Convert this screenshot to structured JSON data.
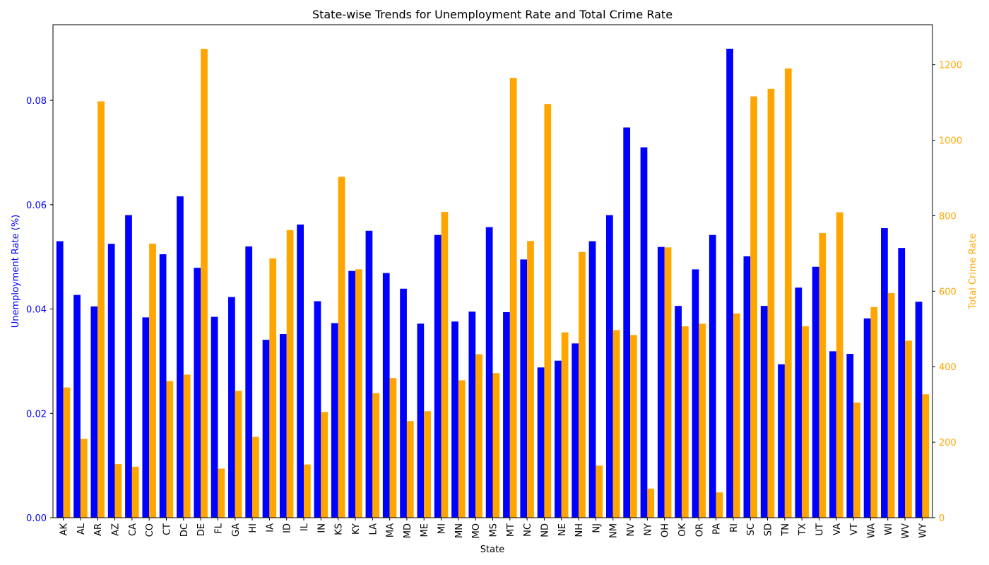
{
  "chart_data": {
    "type": "bar",
    "title": "State-wise Trends for Unemployment Rate and Total Crime Rate",
    "xlabel": "State",
    "y1label": "Unemployment Rate (%)",
    "y2label": "Total Crime Rate",
    "y1lim": [
      0,
      0.0945
    ],
    "y2lim": [
      0,
      1306
    ],
    "y1ticks": [
      "0.00",
      "0.02",
      "0.04",
      "0.06",
      "0.08"
    ],
    "y1tick_values": [
      0,
      0.02,
      0.04,
      0.06,
      0.08
    ],
    "y2ticks": [
      "0",
      "200",
      "400",
      "600",
      "800",
      "1000",
      "1200"
    ],
    "y2tick_values": [
      0,
      200,
      400,
      600,
      800,
      1000,
      1200
    ],
    "colors": {
      "unemployment": "#0000ff",
      "crime": "#ffa500"
    },
    "categories": [
      "AK",
      "AL",
      "AR",
      "AZ",
      "CA",
      "CO",
      "CT",
      "DC",
      "DE",
      "FL",
      "GA",
      "HI",
      "IA",
      "ID",
      "IL",
      "IN",
      "KS",
      "KY",
      "LA",
      "MA",
      "MD",
      "ME",
      "MI",
      "MN",
      "MO",
      "MS",
      "MT",
      "NC",
      "ND",
      "NE",
      "NH",
      "NJ",
      "NM",
      "NV",
      "NY",
      "OH",
      "OK",
      "OR",
      "PA",
      "RI",
      "SC",
      "SD",
      "TN",
      "TX",
      "UT",
      "VA",
      "VT",
      "WA",
      "WI",
      "WV",
      "WY"
    ],
    "series": [
      {
        "axis": "left",
        "values": [
          0.053,
          0.0427,
          0.0405,
          0.0525,
          0.058,
          0.0384,
          0.0505,
          0.0616,
          0.0479,
          0.0385,
          0.0423,
          0.052,
          0.0341,
          0.0352,
          0.0562,
          0.0415,
          0.0373,
          0.0473,
          0.055,
          0.0469,
          0.0439,
          0.0372,
          0.0542,
          0.0376,
          0.0395,
          0.0557,
          0.0394,
          0.0495,
          0.0288,
          0.0301,
          0.0334,
          0.053,
          0.058,
          0.0748,
          0.071,
          0.0519,
          0.0406,
          0.0476,
          0.0542,
          0.0899,
          0.0501,
          0.0406,
          0.0294,
          0.0441,
          0.0481,
          0.0319,
          0.0314,
          0.0382,
          0.0555,
          0.0517,
          0.0414
        ]
      },
      {
        "axis": "right",
        "values": [
          345,
          209,
          1103,
          142,
          135,
          726,
          362,
          379,
          1242,
          130,
          336,
          214,
          687,
          762,
          141,
          280,
          903,
          658,
          330,
          370,
          256,
          282,
          810,
          364,
          433,
          383,
          1165,
          733,
          1096,
          491,
          704,
          138,
          497,
          484,
          77,
          716,
          507,
          514,
          67,
          541,
          1116,
          1136,
          1190,
          507,
          754,
          809,
          305,
          558,
          595,
          469,
          327
        ]
      }
    ]
  }
}
